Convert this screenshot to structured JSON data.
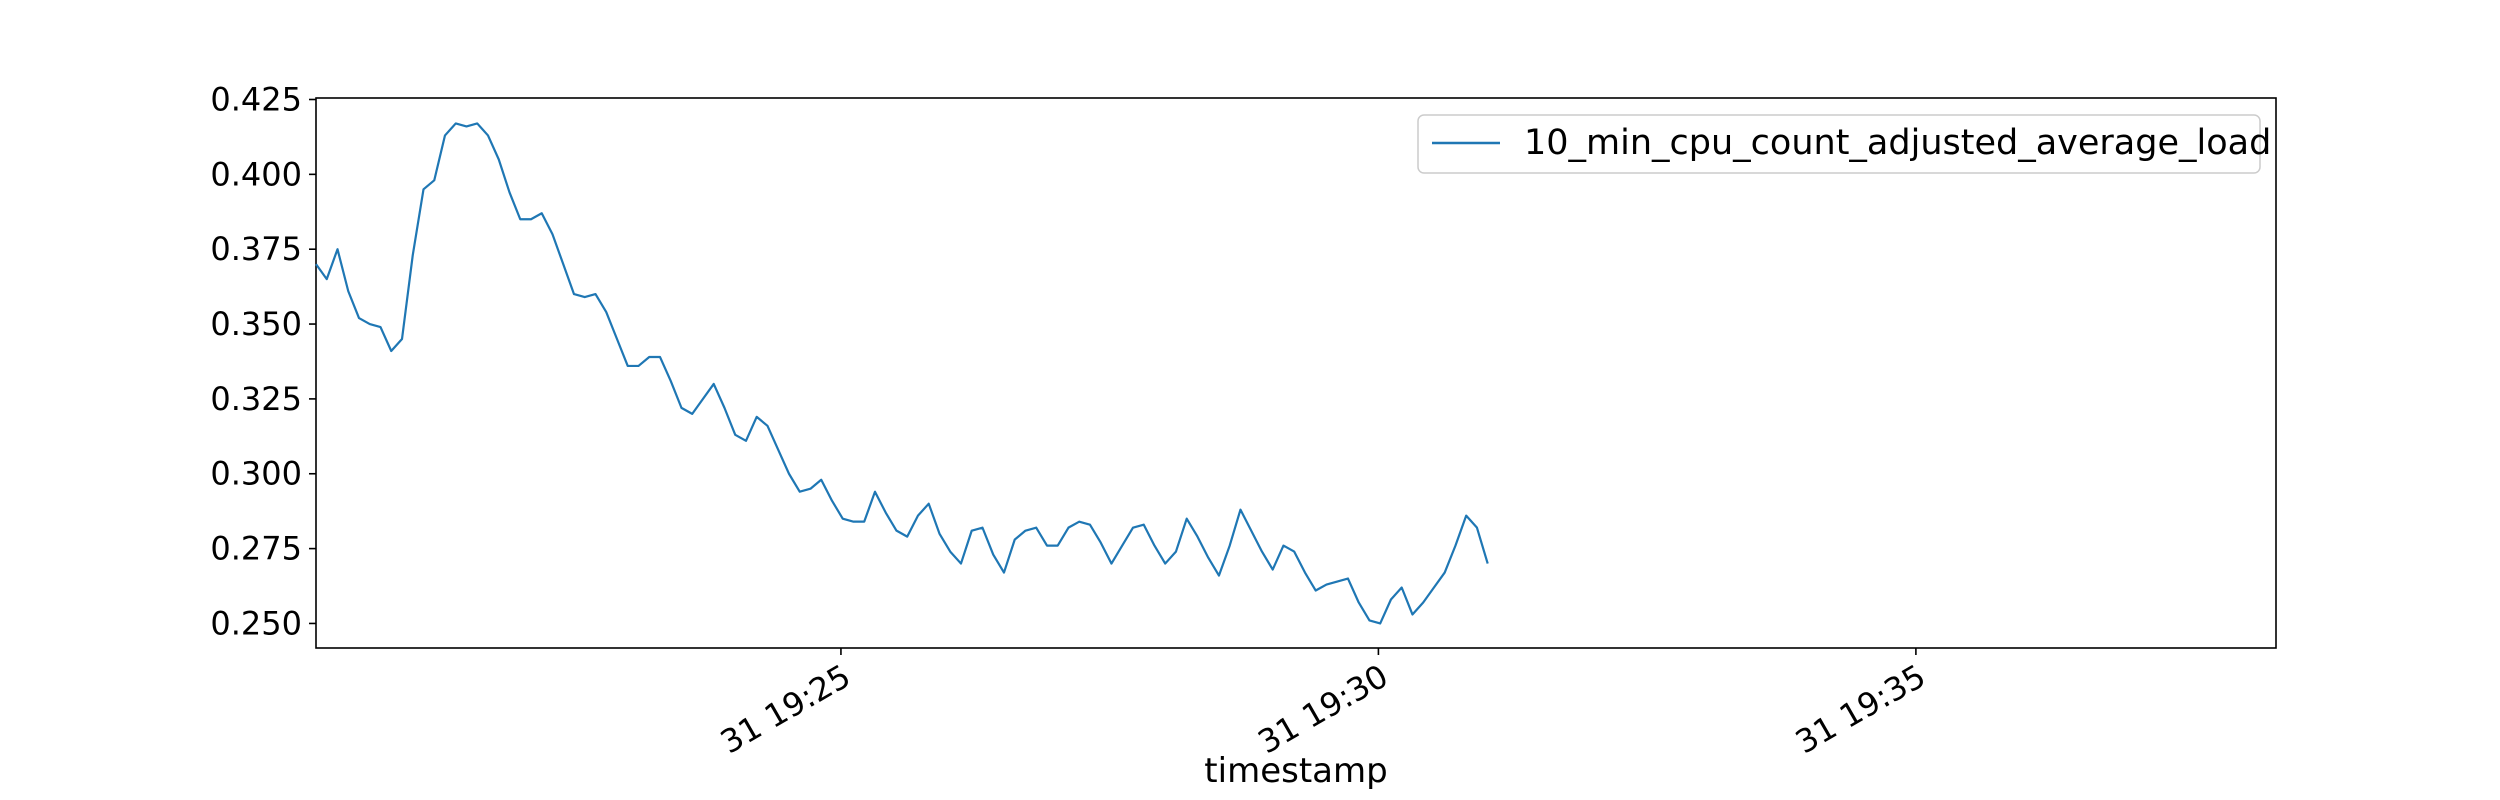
{
  "chart_data": {
    "type": "line",
    "title": "",
    "xlabel": "timestamp",
    "ylabel": "",
    "x_start": "31 19:20:07",
    "x_step_seconds": 6,
    "xlim": [
      "31 19:20:07",
      "31 19:38:21"
    ],
    "x_ticks": [
      {
        "label": "31 19:25",
        "value": "31 19:25:00"
      },
      {
        "label": "31 19:30",
        "value": "31 19:30:00"
      },
      {
        "label": "31 19:35",
        "value": "31 19:35:00"
      }
    ],
    "ylim": [
      0.2418,
      0.4255
    ],
    "y_ticks": [
      "0.250",
      "0.275",
      "0.300",
      "0.325",
      "0.350",
      "0.375",
      "0.400",
      "0.425"
    ],
    "grid": false,
    "legend_position": "top-right",
    "series": [
      {
        "name": "10_min_cpu_count_adjusted_average_load",
        "color": "#1f77b4",
        "values": [
          0.37,
          0.365,
          0.375,
          0.361,
          0.352,
          0.35,
          0.349,
          0.341,
          0.345,
          0.373,
          0.395,
          0.398,
          0.413,
          0.417,
          0.416,
          0.417,
          0.413,
          0.405,
          0.394,
          0.385,
          0.385,
          0.387,
          0.38,
          0.37,
          0.36,
          0.359,
          0.36,
          0.354,
          0.345,
          0.336,
          0.336,
          0.339,
          0.339,
          0.331,
          0.322,
          0.32,
          0.325,
          0.33,
          0.322,
          0.313,
          0.311,
          0.319,
          0.316,
          0.308,
          0.3,
          0.294,
          0.295,
          0.298,
          0.291,
          0.285,
          0.284,
          0.284,
          0.294,
          0.287,
          0.281,
          0.279,
          0.286,
          0.29,
          0.28,
          0.274,
          0.27,
          0.281,
          0.282,
          0.273,
          0.267,
          0.278,
          0.281,
          0.282,
          0.276,
          0.276,
          0.282,
          0.284,
          0.283,
          0.277,
          0.27,
          0.276,
          0.282,
          0.283,
          0.276,
          0.27,
          0.274,
          0.285,
          0.279,
          0.272,
          0.266,
          0.276,
          0.288,
          0.281,
          0.274,
          0.268,
          0.276,
          0.274,
          0.267,
          0.261,
          0.263,
          0.264,
          0.265,
          0.257,
          0.251,
          0.25,
          0.258,
          0.262,
          0.253,
          0.257,
          0.262,
          0.267,
          0.276,
          0.286,
          0.282,
          0.27
        ]
      }
    ]
  }
}
